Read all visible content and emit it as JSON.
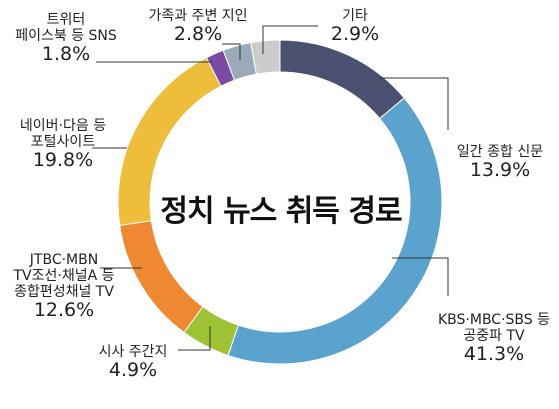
{
  "chart_data": {
    "type": "pie",
    "title": "정치 뉴스 취득 경로",
    "slices": [
      {
        "label_lines": [
          "일간 종합 신문"
        ],
        "value": 13.9,
        "value_text": "13.9%",
        "color": "#4a5170"
      },
      {
        "label_lines": [
          "KBS·MBC·SBS 등",
          "공중파 TV"
        ],
        "value": 41.3,
        "value_text": "41.3%",
        "color": "#5ba3cf"
      },
      {
        "label_lines": [
          "시사 주간지"
        ],
        "value": 4.9,
        "value_text": "4.9%",
        "color": "#9dc234"
      },
      {
        "label_lines": [
          "JTBC·MBN",
          "TV조선·채널A 등",
          "종합편성채널 TV"
        ],
        "value": 12.6,
        "value_text": "12.6%",
        "color": "#ef8830"
      },
      {
        "label_lines": [
          "네이버·다음 등",
          "포털사이트"
        ],
        "value": 19.8,
        "value_text": "19.8%",
        "color": "#eebe3a"
      },
      {
        "label_lines": [
          "트위터",
          "페이스북 등 SNS"
        ],
        "value": 1.8,
        "value_text": "1.8%",
        "color": "#7a4aa4"
      },
      {
        "label_lines": [
          "가족과 주변 지인"
        ],
        "value": 2.8,
        "value_text": "2.8%",
        "color": "#9aaab8"
      },
      {
        "label_lines": [
          "기타"
        ],
        "value": 2.9,
        "value_text": "2.9%",
        "color": "#cccccc"
      }
    ]
  }
}
